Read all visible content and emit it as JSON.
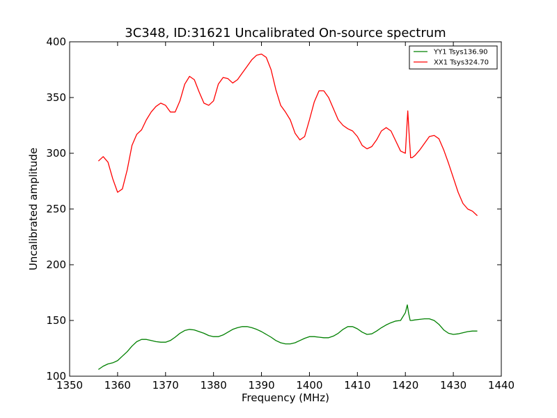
{
  "chart_data": {
    "type": "line",
    "title": "3C348, ID:31621 Uncalibrated On-source spectrum",
    "xlabel": "Frequency (MHz)",
    "ylabel": "Uncalibrated amplitude",
    "xlim": [
      1350,
      1440
    ],
    "ylim": [
      100,
      400
    ],
    "xticks": [
      1350,
      1360,
      1370,
      1380,
      1390,
      1400,
      1410,
      1420,
      1430,
      1440
    ],
    "yticks": [
      100,
      150,
      200,
      250,
      300,
      350,
      400
    ],
    "grid": false,
    "legend_position": "top-right",
    "series": [
      {
        "name": "YY1 Tsys136.90",
        "color": "#008000",
        "x": [
          1356,
          1357,
          1358,
          1359,
          1360,
          1361,
          1362,
          1363,
          1364,
          1365,
          1366,
          1367,
          1368,
          1369,
          1370,
          1371,
          1372,
          1373,
          1374,
          1375,
          1376,
          1377,
          1378,
          1379,
          1380,
          1381,
          1382,
          1383,
          1384,
          1385,
          1386,
          1387,
          1388,
          1389,
          1390,
          1391,
          1392,
          1393,
          1394,
          1395,
          1396,
          1397,
          1398,
          1399,
          1400,
          1401,
          1402,
          1403,
          1404,
          1405,
          1406,
          1407,
          1408,
          1409,
          1410,
          1411,
          1412,
          1413,
          1414,
          1415,
          1416,
          1417,
          1418,
          1419,
          1420,
          1420.4,
          1420.7,
          1421.0,
          1421.3,
          1422,
          1423,
          1424,
          1425,
          1426,
          1427,
          1428,
          1429,
          1430,
          1431,
          1432,
          1433,
          1434,
          1435
        ],
        "values": [
          106,
          109,
          111,
          112,
          114,
          118,
          122,
          127,
          131,
          133,
          133,
          132,
          131,
          130.5,
          130.5,
          132,
          135,
          138.5,
          141,
          142,
          141.5,
          140,
          138.5,
          136.5,
          135.5,
          135.5,
          137,
          139.5,
          142,
          143.5,
          144.5,
          144.5,
          143.5,
          142,
          140,
          137.5,
          135,
          132,
          130,
          129,
          129,
          130,
          132,
          134,
          135.5,
          135.5,
          135,
          134.5,
          134.5,
          136,
          138.5,
          142,
          144.5,
          144.5,
          142.5,
          139.5,
          137.5,
          138,
          140.5,
          143.5,
          146,
          148,
          149.5,
          150,
          157,
          164,
          156,
          150,
          150,
          150.5,
          151,
          151.5,
          151.5,
          150,
          146.5,
          141.5,
          138.5,
          137.5,
          138,
          139,
          140,
          140.5,
          140.5
        ]
      },
      {
        "name": "XX1 Tsys324.70",
        "color": "#ff0000",
        "x": [
          1356,
          1357,
          1358,
          1359,
          1360,
          1361,
          1362,
          1363,
          1364,
          1365,
          1366,
          1367,
          1368,
          1369,
          1370,
          1371,
          1372,
          1373,
          1374,
          1375,
          1376,
          1377,
          1378,
          1379,
          1380,
          1381,
          1382,
          1383,
          1384,
          1385,
          1386,
          1387,
          1388,
          1389,
          1390,
          1391,
          1392,
          1393,
          1394,
          1395,
          1396,
          1397,
          1398,
          1399,
          1400,
          1401,
          1402,
          1403,
          1404,
          1405,
          1406,
          1407,
          1408,
          1409,
          1410,
          1411,
          1412,
          1413,
          1414,
          1415,
          1416,
          1417,
          1418,
          1419,
          1420,
          1420.5,
          1420.8,
          1421.1,
          1421.4,
          1422,
          1423,
          1424,
          1425,
          1426,
          1427,
          1428,
          1429,
          1430,
          1431,
          1432,
          1433,
          1434,
          1435
        ],
        "values": [
          293,
          297,
          292,
          277,
          265,
          268,
          285,
          307,
          317,
          321,
          330,
          337,
          342,
          345,
          343,
          337,
          337,
          347,
          362,
          369,
          366,
          355,
          345,
          343,
          347,
          362,
          368,
          367,
          363,
          366,
          372,
          378,
          384,
          388,
          389,
          386,
          375,
          357,
          343,
          337,
          330,
          318,
          312,
          315,
          330,
          346,
          356,
          356,
          350,
          340,
          330,
          325,
          322,
          320,
          315,
          307,
          304,
          306,
          312,
          320,
          323,
          320,
          311,
          302,
          300,
          338,
          316,
          296,
          296,
          298,
          303,
          309,
          315,
          316,
          313,
          303,
          291,
          278,
          265,
          255,
          250,
          248,
          244
        ]
      }
    ]
  }
}
